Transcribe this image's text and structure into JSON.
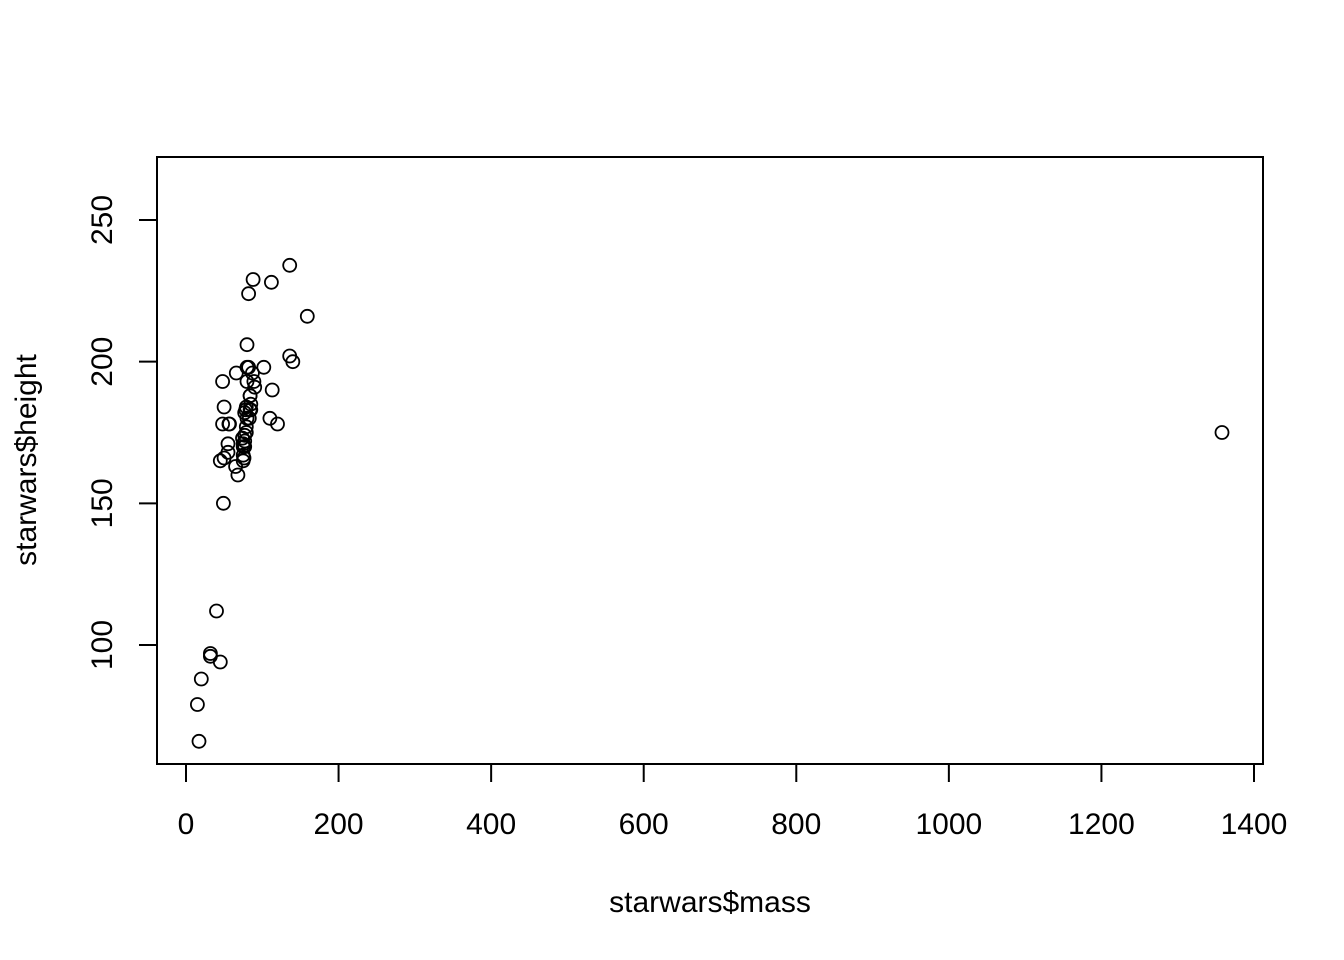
{
  "chart_data": {
    "type": "scatter",
    "title": "",
    "xlabel": "starwars$mass",
    "ylabel": "starwars$height",
    "xlim": [
      0,
      1400
    ],
    "ylim": [
      66,
      260
    ],
    "xticks": [
      0,
      200,
      400,
      600,
      800,
      1000,
      1200,
      1400
    ],
    "yticks": [
      100,
      150,
      200,
      250
    ],
    "xtick_labels": [
      "0",
      "200",
      "400",
      "600",
      "800",
      "1000",
      "1200",
      "1400"
    ],
    "ytick_labels": [
      "100",
      "150",
      "200",
      "250"
    ],
    "grid": false,
    "marker": "open-circle",
    "points": [
      {
        "x": 77,
        "y": 172
      },
      {
        "x": 75,
        "y": 167
      },
      {
        "x": 32,
        "y": 96
      },
      {
        "x": 136,
        "y": 202
      },
      {
        "x": 49,
        "y": 150
      },
      {
        "x": 120,
        "y": 178
      },
      {
        "x": 75,
        "y": 165
      },
      {
        "x": 32,
        "y": 97
      },
      {
        "x": 84,
        "y": 183
      },
      {
        "x": 77,
        "y": 182
      },
      {
        "x": 84,
        "y": 188
      },
      {
        "x": 112,
        "y": 228
      },
      {
        "x": 80,
        "y": 180
      },
      {
        "x": 74,
        "y": 173
      },
      {
        "x": 1358,
        "y": 175
      },
      {
        "x": 77,
        "y": 170
      },
      {
        "x": 110,
        "y": 180
      },
      {
        "x": 17,
        "y": 66
      },
      {
        "x": 75,
        "y": 170
      },
      {
        "x": 78.2,
        "y": 183
      },
      {
        "x": 140,
        "y": 200
      },
      {
        "x": 113,
        "y": 190
      },
      {
        "x": 79,
        "y": 177
      },
      {
        "x": 79,
        "y": 175
      },
      {
        "x": 83,
        "y": 180
      },
      {
        "x": 20,
        "y": 88
      },
      {
        "x": 68,
        "y": 160
      },
      {
        "x": 89,
        "y": 193
      },
      {
        "x": 90,
        "y": 191
      },
      {
        "x": 66,
        "y": 196
      },
      {
        "x": 82,
        "y": 224
      },
      {
        "x": 40,
        "y": 112
      },
      {
        "x": 80,
        "y": 198
      },
      {
        "x": 55,
        "y": 171
      },
      {
        "x": 45,
        "y": 94
      },
      {
        "x": 65,
        "y": 163
      },
      {
        "x": 84,
        "y": 188
      },
      {
        "x": 82,
        "y": 198
      },
      {
        "x": 87,
        "y": 196
      },
      {
        "x": 50,
        "y": 184
      },
      {
        "x": 80,
        "y": 206
      },
      {
        "x": 56.2,
        "y": 178
      },
      {
        "x": 50,
        "y": 166
      },
      {
        "x": 85,
        "y": 183
      },
      {
        "x": 80,
        "y": 193
      },
      {
        "x": 15,
        "y": 79
      },
      {
        "x": 48,
        "y": 193
      },
      {
        "x": 57,
        "y": 178
      },
      {
        "x": 88,
        "y": 229
      },
      {
        "x": 45,
        "y": 165
      },
      {
        "x": 55,
        "y": 168
      },
      {
        "x": 102,
        "y": 198
      },
      {
        "x": 136,
        "y": 234
      },
      {
        "x": 159,
        "y": 216
      },
      {
        "x": 48,
        "y": 178
      },
      {
        "x": 85,
        "y": 185
      },
      {
        "x": 79,
        "y": 184
      },
      {
        "x": 76,
        "y": 166
      },
      {
        "x": 75,
        "y": 171
      },
      {
        "x": 77,
        "y": 174
      }
    ]
  }
}
